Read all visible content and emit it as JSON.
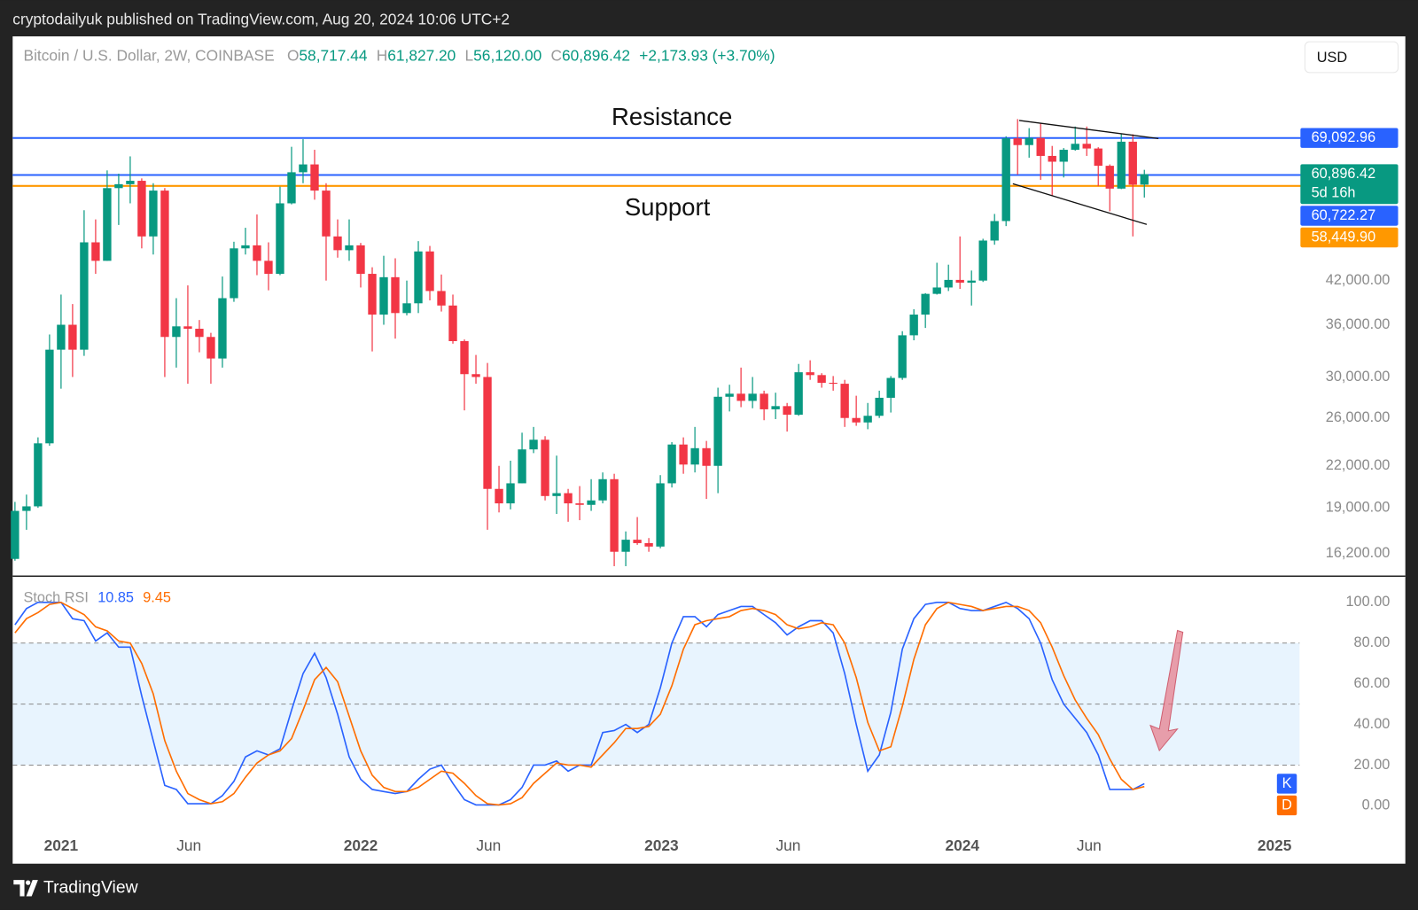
{
  "header": {
    "published": "cryptodailyuk published on TradingView.com, Aug 20, 2024 10:06 UTC+2",
    "currency": "USD"
  },
  "footer": {
    "brand": "TradingView"
  },
  "chart_data": [
    {
      "type": "candlestick",
      "title": "Bitcoin / U.S. Dollar, 2W, COINBASE",
      "ohlc_keys": [
        "O",
        "H",
        "L",
        "C"
      ],
      "last_labels": {
        "open": "58,717.44",
        "high": "61,827.20",
        "low": "56,120.00",
        "close": "60,896.42"
      },
      "change_label": "+2,173.93 (+3.70%)",
      "countdown": "5d 16h",
      "annotations": [
        "Resistance",
        "Support"
      ],
      "up_color": "#089981",
      "down_color": "#f23645",
      "log_scale": true,
      "grid": false,
      "categories": [
        null,
        null,
        null,
        null,
        null,
        null,
        null,
        null,
        null,
        null,
        null,
        null,
        null,
        null,
        null,
        null,
        null,
        null,
        null,
        null,
        null,
        null,
        null,
        null,
        null,
        null,
        null,
        null,
        null,
        null,
        null,
        null,
        null,
        null,
        null,
        null,
        null,
        null,
        null,
        null,
        null,
        null,
        null,
        null,
        null,
        null,
        null,
        null,
        null,
        null,
        null,
        null,
        null,
        null,
        null,
        null,
        null,
        null,
        null,
        null,
        null,
        null,
        null,
        null,
        null,
        null,
        null,
        null,
        null,
        null,
        null,
        null,
        null,
        null,
        null,
        null,
        null,
        null,
        null,
        null,
        null,
        null,
        null,
        null,
        null,
        null,
        null,
        null,
        null,
        null,
        null,
        null,
        null,
        null,
        null,
        null,
        null,
        null,
        null
      ],
      "open": [
        15900,
        18800,
        19100,
        23800,
        33000,
        36000,
        33000,
        48000,
        45000,
        58000,
        58800,
        59500,
        49000,
        57500,
        34500,
        35800,
        35500,
        34500,
        32000,
        39500,
        47000,
        47500,
        45000,
        43000,
        55000,
        61300,
        63000,
        57500,
        49000,
        46700,
        47500,
        43000,
        37300,
        42500,
        37500,
        38800,
        46500,
        40500,
        38500,
        34000,
        30300,
        30000,
        20300,
        19300,
        20700,
        23300,
        24100,
        19800,
        20000,
        19300,
        19200,
        19500,
        21000,
        16300,
        17000,
        16800,
        16600,
        20700,
        23700,
        22100,
        23400,
        22000,
        28000,
        28300,
        27600,
        28300,
        26800,
        27100,
        26300,
        30500,
        30200,
        29400,
        29300,
        26000,
        25600,
        26200,
        27900,
        29900,
        34700,
        37300,
        40100,
        41000,
        42100,
        41700,
        42000,
        48300,
        51700,
        69000,
        67400,
        69100,
        64900,
        63600,
        66300,
        67700,
        66600,
        62700,
        57900,
        68200,
        58717.44
      ],
      "high": [
        19400,
        19900,
        24300,
        34800,
        40000,
        38700,
        53700,
        52000,
        61700,
        61000,
        64800,
        60000,
        59000,
        58000,
        39500,
        41300,
        36600,
        35000,
        42600,
        48100,
        50500,
        52900,
        48000,
        58300,
        67000,
        68800,
        66300,
        59000,
        52000,
        52000,
        47900,
        44000,
        45800,
        45400,
        42000,
        48200,
        47400,
        42900,
        40000,
        34200,
        32400,
        31500,
        22000,
        22400,
        24700,
        25200,
        24400,
        22800,
        20300,
        20500,
        21000,
        21500,
        21400,
        17500,
        18400,
        17100,
        21300,
        23900,
        24300,
        25200,
        24000,
        28900,
        29200,
        31000,
        30000,
        28600,
        28400,
        27400,
        31400,
        31800,
        30400,
        30100,
        29700,
        28100,
        27400,
        28600,
        30100,
        35200,
        38000,
        40200,
        44700,
        44400,
        49000,
        43500,
        48600,
        53000,
        69500,
        73800,
        71500,
        72800,
        67200,
        66700,
        71900,
        71900,
        66900,
        63000,
        70000,
        70000,
        61827.2
      ],
      "low": [
        15800,
        17600,
        19000,
        23600,
        28800,
        30000,
        32300,
        43000,
        45000,
        51000,
        55000,
        47000,
        46000,
        30000,
        31000,
        29300,
        32700,
        29300,
        31000,
        39000,
        46000,
        42800,
        40600,
        42800,
        54800,
        59000,
        55700,
        42000,
        45500,
        45000,
        41000,
        32800,
        36000,
        34300,
        37200,
        37500,
        39200,
        37700,
        33700,
        26700,
        29300,
        17600,
        18700,
        18900,
        20700,
        23000,
        19500,
        18600,
        18100,
        18200,
        18800,
        19300,
        15500,
        15500,
        16700,
        16300,
        16500,
        20400,
        21400,
        21500,
        19600,
        20000,
        26600,
        27000,
        26900,
        25800,
        25900,
        24800,
        26200,
        29700,
        28900,
        28600,
        25200,
        25300,
        25000,
        26000,
        26500,
        29700,
        34100,
        35600,
        40000,
        40500,
        40800,
        38500,
        41800,
        47600,
        50800,
        60800,
        64500,
        59700,
        56500,
        60200,
        66100,
        64900,
        58400,
        53500,
        57800,
        49000,
        56120
      ],
      "close": [
        18800,
        19100,
        23800,
        33000,
        36000,
        33000,
        48000,
        45000,
        58000,
        58800,
        59500,
        49000,
        57500,
        34500,
        35800,
        35500,
        34500,
        32000,
        39500,
        47000,
        47500,
        45000,
        43000,
        55000,
        61300,
        63000,
        57500,
        49000,
        46700,
        47500,
        43000,
        37300,
        42500,
        37500,
        38800,
        46500,
        40500,
        38500,
        34000,
        30300,
        30000,
        20300,
        19300,
        20700,
        23300,
        24100,
        19800,
        20000,
        19300,
        19200,
        19500,
        21000,
        16300,
        17000,
        16800,
        16600,
        20700,
        23700,
        22100,
        23400,
        22000,
        28000,
        28300,
        27600,
        28300,
        26800,
        27100,
        26300,
        30500,
        30200,
        29400,
        29300,
        26000,
        25600,
        26200,
        27900,
        29900,
        34700,
        37300,
        40100,
        41000,
        42100,
        41700,
        42000,
        48300,
        51700,
        69000,
        67400,
        69100,
        64900,
        63600,
        66300,
        67700,
        66600,
        62700,
        57900,
        68200,
        58700,
        60896.42
      ],
      "price_lines": [
        {
          "value": 69092.96,
          "label": "69,092.96",
          "color": "#2962ff"
        },
        {
          "value": 60722.27,
          "label": "60,722.27",
          "color": "#2962ff"
        },
        {
          "value": 58449.9,
          "label": "58,449.90",
          "color": "#ff9800"
        }
      ],
      "xlim": [
        -0.2,
        111.7
      ],
      "xticks": [
        {
          "value": 4,
          "label": "2021"
        },
        {
          "value": 15.1,
          "label": "Jun"
        },
        {
          "value": 30,
          "label": "2022"
        },
        {
          "value": 41.1,
          "label": "Jun"
        },
        {
          "value": 56.1,
          "label": "2023"
        },
        {
          "value": 67.1,
          "label": "Jun"
        },
        {
          "value": 82.2,
          "label": "2024"
        },
        {
          "value": 93.2,
          "label": "Jun"
        },
        {
          "value": 109.3,
          "label": "2025"
        }
      ],
      "ylim": [
        14970,
        98500
      ],
      "yticks": [
        {
          "value": 16200,
          "label": "16,200.00"
        },
        {
          "value": 19000,
          "label": "19,000.00"
        },
        {
          "value": 22000,
          "label": "22,000.00"
        },
        {
          "value": 26000,
          "label": "26,000.00"
        },
        {
          "value": 30000,
          "label": "30,000.00"
        },
        {
          "value": 36000,
          "label": "36,000.00"
        },
        {
          "value": 42000,
          "label": "42,000.00"
        }
      ]
    },
    {
      "type": "line",
      "title": "Stoch RSI",
      "ylim": [
        -10.7,
        112.9
      ],
      "yticks": [
        {
          "value": 100,
          "label": "100.00"
        },
        {
          "value": 80,
          "label": "80.00"
        },
        {
          "value": 60,
          "label": "60.00"
        },
        {
          "value": 40,
          "label": "40.00"
        },
        {
          "value": 20,
          "label": "20.00"
        },
        {
          "value": 0,
          "label": "0.00"
        }
      ],
      "levels": [
        80,
        50,
        20
      ],
      "band": [
        20,
        80
      ],
      "series": [
        {
          "name": "K",
          "color": "#2962ff",
          "values": [
            89,
            97,
            100,
            100,
            100,
            92,
            91,
            81,
            85,
            78,
            78,
            54,
            32,
            10,
            8,
            1,
            1,
            1,
            5,
            12,
            24,
            27,
            25,
            28,
            47,
            65,
            75,
            63,
            45,
            24,
            13,
            8,
            7,
            6,
            7,
            13,
            18,
            20,
            11,
            3,
            0.4,
            0.4,
            0.4,
            3,
            9,
            20,
            20,
            22,
            17,
            20,
            20,
            36,
            37,
            40,
            36,
            40,
            58,
            80,
            93,
            93,
            88,
            94,
            96,
            98,
            98,
            94,
            90,
            84,
            88,
            91,
            91,
            85,
            65,
            40,
            17,
            25,
            46,
            77,
            92,
            99,
            100,
            100,
            97,
            96,
            96,
            98,
            100,
            97,
            92,
            80,
            62,
            50,
            43,
            36,
            25,
            8,
            8,
            8,
            10.85
          ]
        },
        {
          "name": "D",
          "color": "#ff6d00",
          "values": [
            85,
            92,
            95,
            99,
            100,
            97,
            94,
            88,
            86,
            81,
            80,
            70,
            55,
            32,
            17,
            6,
            3,
            1,
            2,
            6,
            14,
            21,
            25,
            27,
            33,
            47,
            62,
            68,
            61,
            44,
            27,
            15,
            9,
            7,
            7,
            9,
            13,
            17,
            16,
            11,
            5,
            1,
            0.4,
            1,
            4,
            11,
            16,
            21,
            20,
            20,
            19,
            25,
            31,
            38,
            38,
            39,
            45,
            59,
            77,
            89,
            91,
            92,
            93,
            96,
            97,
            96,
            94,
            89,
            87,
            88,
            90,
            89,
            80,
            63,
            41,
            27,
            29,
            49,
            72,
            89,
            97,
            100,
            99,
            98,
            96,
            97,
            98,
            98,
            96,
            90,
            78,
            64,
            52,
            43,
            35,
            23,
            13,
            8,
            9.45
          ]
        }
      ]
    }
  ]
}
